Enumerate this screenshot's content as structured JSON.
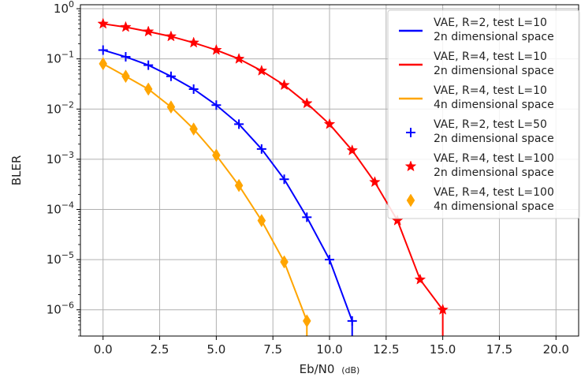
{
  "chart_data": {
    "type": "line",
    "title": "",
    "xlabel": "Eb/N0",
    "xlabel_unit": "(dB)",
    "ylabel": "BLER",
    "xlim": [
      -1,
      21
    ],
    "ylim": [
      3e-07,
      1.2
    ],
    "yscale": "log",
    "grid": true,
    "legend_position": "top-right",
    "x_ticks": [
      0.0,
      2.5,
      5.0,
      7.5,
      10.0,
      12.5,
      15.0,
      17.5,
      20.0
    ],
    "x_tick_labels": [
      "0.0",
      "2.5",
      "5.0",
      "7.5",
      "10.0",
      "12.5",
      "15.0",
      "17.5",
      "20.0"
    ],
    "y_ticks": [
      1e-06,
      1e-05,
      0.0001,
      0.001,
      0.01,
      0.1,
      1
    ],
    "y_tick_bases": [
      "10",
      "10",
      "10",
      "10",
      "10",
      "10",
      "10"
    ],
    "y_tick_exponents": [
      "−6",
      "−5",
      "−4",
      "−3",
      "−2",
      "−1",
      "0"
    ],
    "series": [
      {
        "name": [
          "VAE, R=2, test L=10",
          "2n dimensional space"
        ],
        "kind": "line",
        "color": "#0000ff",
        "x": [
          0,
          1,
          2,
          3,
          4,
          5,
          6,
          7,
          8,
          9,
          10,
          11,
          11
        ],
        "y": [
          0.15,
          0.11,
          0.075,
          0.045,
          0.025,
          0.012,
          0.005,
          0.0016,
          0.0004,
          7e-05,
          1e-05,
          6e-07,
          3e-07
        ]
      },
      {
        "name": [
          "VAE, R=4, test L=10",
          "2n dimensional space"
        ],
        "kind": "line",
        "color": "#ff0000",
        "x": [
          0,
          1,
          2,
          3,
          4,
          5,
          6,
          7,
          8,
          9,
          10,
          11,
          12,
          13,
          14,
          15,
          15
        ],
        "y": [
          0.5,
          0.43,
          0.35,
          0.28,
          0.21,
          0.15,
          0.1,
          0.058,
          0.03,
          0.013,
          0.005,
          0.0015,
          0.00035,
          6e-05,
          4e-06,
          1e-06,
          3e-07
        ]
      },
      {
        "name": [
          "VAE, R=4, test L=10",
          "4n dimensional space"
        ],
        "kind": "line",
        "color": "#ffa500",
        "x": [
          0,
          1,
          2,
          3,
          4,
          5,
          6,
          7,
          8,
          9,
          9
        ],
        "y": [
          0.08,
          0.045,
          0.025,
          0.011,
          0.004,
          0.0012,
          0.0003,
          6e-05,
          9e-06,
          6e-07,
          3e-07
        ]
      },
      {
        "name": [
          "VAE, R=2, test L=50",
          "2n dimensional space"
        ],
        "kind": "marker",
        "marker": "plus",
        "color": "#0000ff",
        "x": [
          0,
          1,
          2,
          3,
          4,
          5,
          6,
          7,
          8,
          9,
          10,
          11
        ],
        "y": [
          0.15,
          0.11,
          0.075,
          0.045,
          0.025,
          0.012,
          0.005,
          0.0016,
          0.0004,
          7e-05,
          1e-05,
          6e-07
        ]
      },
      {
        "name": [
          "VAE, R=4, test L=100",
          "2n dimensional space"
        ],
        "kind": "marker",
        "marker": "star",
        "color": "#ff0000",
        "x": [
          0,
          1,
          2,
          3,
          4,
          5,
          6,
          7,
          8,
          9,
          10,
          11,
          12,
          13,
          14,
          15
        ],
        "y": [
          0.5,
          0.43,
          0.35,
          0.28,
          0.21,
          0.15,
          0.1,
          0.058,
          0.03,
          0.013,
          0.005,
          0.0015,
          0.00035,
          6e-05,
          4e-06,
          1e-06
        ]
      },
      {
        "name": [
          "VAE, R=4, test L=100",
          "4n dimensional space"
        ],
        "kind": "marker",
        "marker": "diamond",
        "color": "#ffa500",
        "x": [
          0,
          1,
          2,
          3,
          4,
          5,
          6,
          7,
          8,
          9
        ],
        "y": [
          0.08,
          0.045,
          0.025,
          0.011,
          0.004,
          0.0012,
          0.0003,
          6e-05,
          9e-06,
          6e-07
        ]
      }
    ]
  }
}
